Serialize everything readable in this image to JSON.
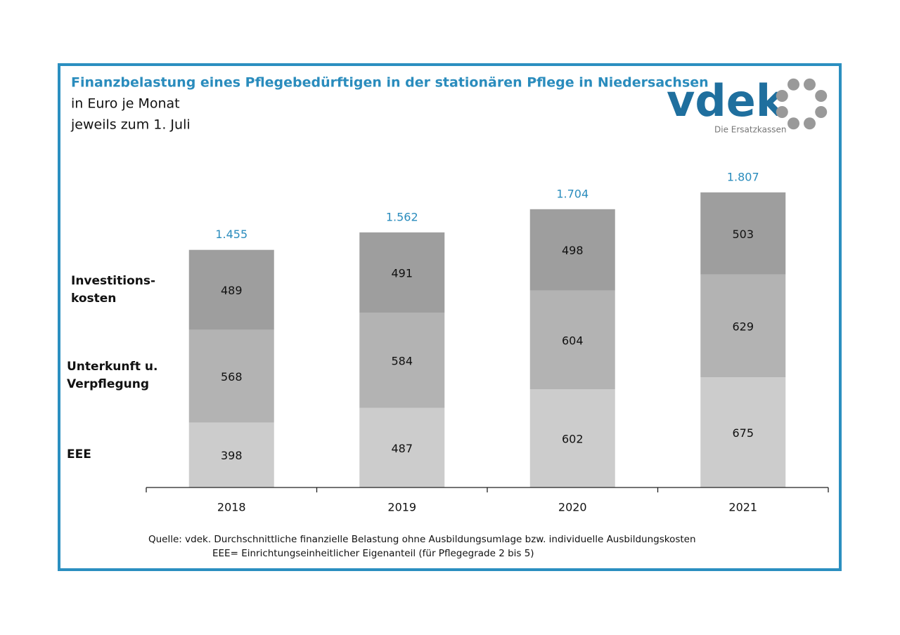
{
  "chart_data": {
    "type": "stacked_bar",
    "title": "Finanzbelastung eines Pflegebedürftigen in der stationären Pflege in Niedersachsen",
    "subtitle": [
      "in Euro je Monat",
      "jeweils zum 1. Juli"
    ],
    "categories": [
      "2018",
      "2019",
      "2020",
      "2021"
    ],
    "series": [
      {
        "name": "EEE",
        "color": "#cccccc",
        "values": [
          398,
          487,
          602,
          675
        ]
      },
      {
        "name": "Unterkunft u.\nVerpflegung",
        "color": "#b3b3b3",
        "values": [
          568,
          584,
          604,
          629
        ]
      },
      {
        "name": "Investitions-\nkosten",
        "color": "#9e9e9e",
        "values": [
          489,
          491,
          498,
          503
        ]
      }
    ],
    "totals": {
      "values": [
        1455,
        1562,
        1704,
        1807
      ],
      "value_labels": [
        "1.455",
        "1.562",
        "1.704",
        "1.807"
      ],
      "color": "#2a8cbd"
    },
    "ylim": [
      0,
      2000
    ],
    "source": [
      "Quelle: vdek. Durchschnittliche finanzielle Belastung ohne Ausbildungsumlage bzw. individuelle Ausbildungskosten",
      "EEE= Einrichtungseinheitlicher Eigenanteil (für Pflegegrade 2 bis 5)"
    ],
    "logo": {
      "name": "vdek",
      "tagline": "Die Ersatzkassen"
    }
  }
}
